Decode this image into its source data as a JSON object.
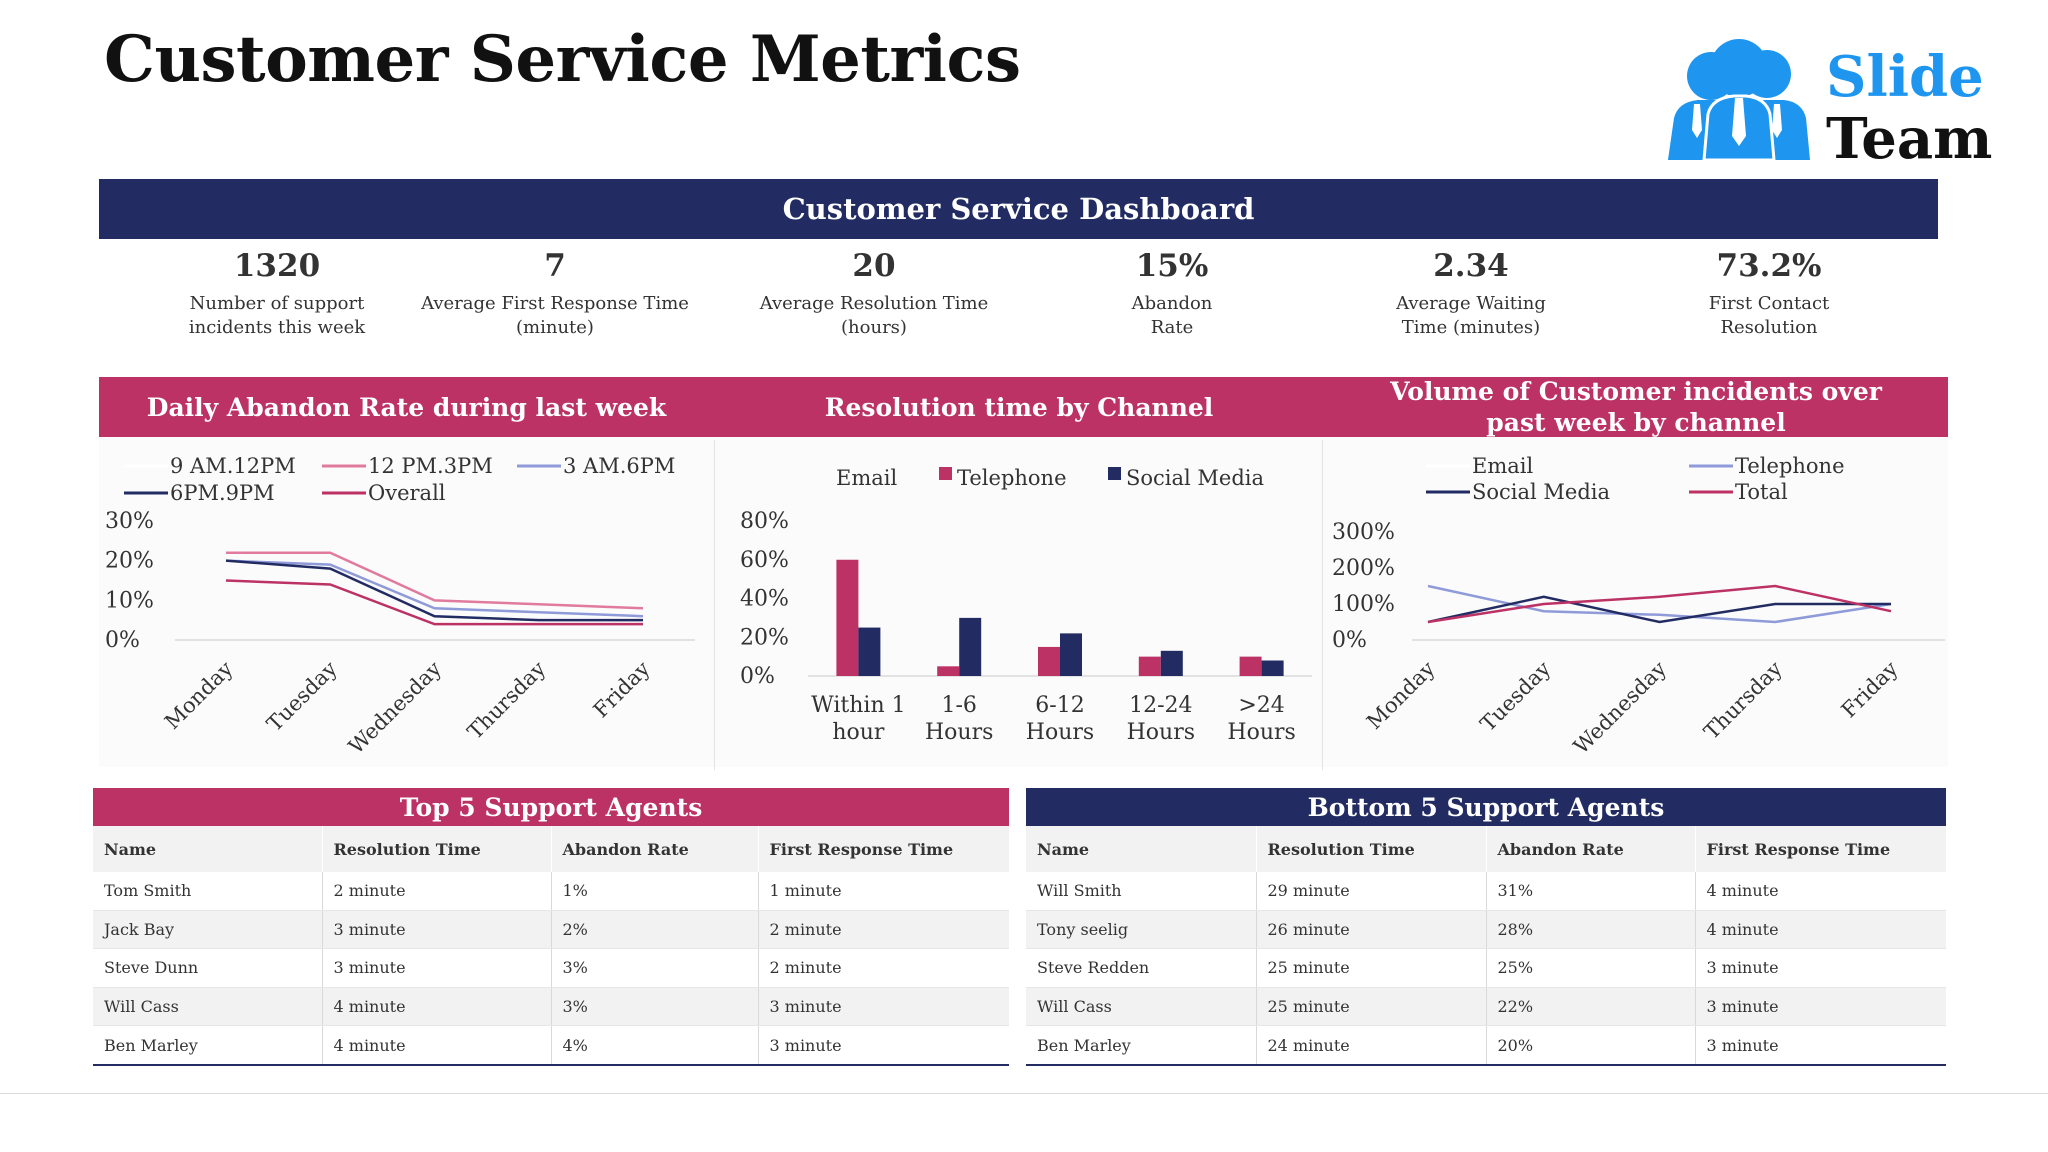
{
  "page": {
    "title": "Customer Service Metrics"
  },
  "logo": {
    "line1": "Slide",
    "line2": "Team"
  },
  "dashboard": {
    "title": "Customer Service Dashboard",
    "kpis": [
      {
        "value": "1320",
        "label": "Number of support\nincidents this week"
      },
      {
        "value": "7",
        "label": "Average First Response Time\n(minute)"
      },
      {
        "value": "20",
        "label": "Average Resolution Time\n(hours)"
      },
      {
        "value": "15%",
        "label": "Abandon\nRate"
      },
      {
        "value": "2.34",
        "label": "Average Waiting\nTime (minutes)"
      },
      {
        "value": "73.2%",
        "label": "First Contact\nResolution"
      }
    ]
  },
  "colors": {
    "navy": "#222c63",
    "crimson": "#bc3264",
    "pink": "#e07a9e",
    "lavender": "#8f9ad8"
  },
  "chart_data": [
    {
      "type": "line",
      "title": "Daily Abandon Rate during last week",
      "categories": [
        "Monday",
        "Tuesday",
        "Wednesday",
        "Thursday",
        "Friday"
      ],
      "ylim": [
        0,
        0.3
      ],
      "yticks": [
        "30%",
        "20%",
        "10%",
        "0%"
      ],
      "series": [
        {
          "name": "9 AM.12PM",
          "color": "#ffffff",
          "values": [
            0.2,
            0.19,
            0.08,
            0.07,
            0.06
          ]
        },
        {
          "name": "12 PM.3PM",
          "color": "#e07a9e",
          "values": [
            0.22,
            0.22,
            0.1,
            0.09,
            0.08
          ]
        },
        {
          "name": "3 AM.6PM",
          "color": "#8f9ad8",
          "values": [
            0.2,
            0.19,
            0.08,
            0.07,
            0.06
          ]
        },
        {
          "name": "6PM.9PM",
          "color": "#222c63",
          "values": [
            0.2,
            0.18,
            0.06,
            0.05,
            0.05
          ]
        },
        {
          "name": "Overall",
          "color": "#bc3264",
          "values": [
            0.15,
            0.14,
            0.04,
            0.04,
            0.04
          ]
        }
      ],
      "legend": "top"
    },
    {
      "type": "bar",
      "title": "Resolution time by Channel",
      "categories": [
        "Within 1 hour",
        "1-6 Hours",
        "6-12 Hours",
        "12-24 Hours",
        ">24 Hours"
      ],
      "ylim": [
        0,
        0.8
      ],
      "yticks": [
        "80%",
        "60%",
        "40%",
        "20%",
        "0%"
      ],
      "series": [
        {
          "name": "Email",
          "color": "#ffffff",
          "values": [
            0,
            0,
            0,
            0,
            0
          ]
        },
        {
          "name": "Telephone",
          "color": "#bc3264",
          "values": [
            0.6,
            0.05,
            0.15,
            0.1,
            0.1
          ]
        },
        {
          "name": "Social Media",
          "color": "#222c63",
          "values": [
            0.25,
            0.3,
            0.22,
            0.13,
            0.08
          ]
        }
      ],
      "legend": "top"
    },
    {
      "type": "line",
      "title": "Volume of Customer incidents over past week by channel",
      "categories": [
        "Monday",
        "Tuesday",
        "Wednesday",
        "Thursday",
        "Friday"
      ],
      "ylim": [
        0,
        3
      ],
      "yticks": [
        "300%",
        "200%",
        "100%",
        "0%"
      ],
      "series": [
        {
          "name": "Email",
          "color": "#ffffff",
          "values": [
            0.5,
            1.0,
            0.6,
            0.8,
            1.0
          ]
        },
        {
          "name": "Telephone",
          "color": "#8f9ad8",
          "values": [
            1.5,
            0.8,
            0.7,
            0.5,
            1.0
          ]
        },
        {
          "name": "Social Media",
          "color": "#222c63",
          "values": [
            0.5,
            1.2,
            0.5,
            1.0,
            1.0
          ]
        },
        {
          "name": "Total",
          "color": "#bc3264",
          "values": [
            0.5,
            1.0,
            1.2,
            1.5,
            0.8
          ]
        }
      ],
      "legend": "top"
    }
  ],
  "top_agents": {
    "title": "Top 5 Support Agents",
    "columns": [
      "Name",
      "Resolution Time",
      "Abandon Rate",
      "First Response Time"
    ],
    "rows": [
      [
        "Tom Smith",
        "2 minute",
        "1%",
        "1 minute"
      ],
      [
        "Jack Bay",
        "3 minute",
        "2%",
        "2 minute"
      ],
      [
        "Steve Dunn",
        "3 minute",
        "3%",
        "2 minute"
      ],
      [
        "Will Cass",
        "4 minute",
        "3%",
        "3 minute"
      ],
      [
        "Ben Marley",
        "4 minute",
        "4%",
        "3 minute"
      ]
    ]
  },
  "bottom_agents": {
    "title": "Bottom 5 Support Agents",
    "columns": [
      "Name",
      "Resolution Time",
      "Abandon Rate",
      "First Response Time"
    ],
    "rows": [
      [
        "Will Smith",
        "29 minute",
        "31%",
        "4 minute"
      ],
      [
        "Tony seelig",
        "26 minute",
        "28%",
        "4 minute"
      ],
      [
        "Steve Redden",
        "25 minute",
        "25%",
        "3 minute"
      ],
      [
        "Will Cass",
        "25 minute",
        "22%",
        "3 minute"
      ],
      [
        "Ben Marley",
        "24 minute",
        "20%",
        "3 minute"
      ]
    ]
  }
}
